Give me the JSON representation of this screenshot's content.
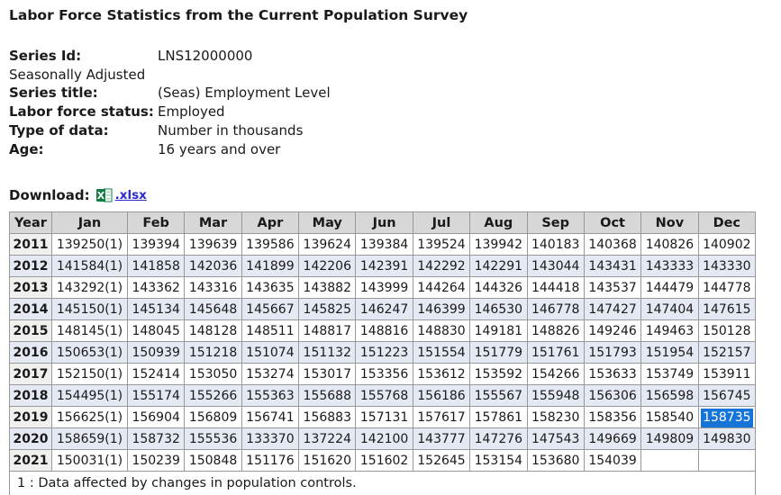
{
  "page_title": "Labor Force Statistics from the Current Population Survey",
  "meta": {
    "rows": [
      {
        "label": "Series Id:",
        "value": "LNS12000000"
      },
      {
        "label": "Seasonally Adjusted",
        "value": ""
      },
      {
        "label": "Series title:",
        "value": "(Seas) Employment Level"
      },
      {
        "label": "Labor force status:",
        "value": "Employed"
      },
      {
        "label": "Type of data:",
        "value": "Number in thousands"
      },
      {
        "label": "Age:",
        "value": "16 years and over"
      }
    ]
  },
  "download": {
    "label": "Download:",
    "link_text": ".xlsx",
    "icon": "excel-xlsx-icon"
  },
  "table": {
    "columns": [
      "Year",
      "Jan",
      "Feb",
      "Mar",
      "Apr",
      "May",
      "Jun",
      "Jul",
      "Aug",
      "Sep",
      "Oct",
      "Nov",
      "Dec"
    ],
    "rows": [
      {
        "year": "2011",
        "values": [
          "139250(1)",
          "139394",
          "139639",
          "139586",
          "139624",
          "139384",
          "139524",
          "139942",
          "140183",
          "140368",
          "140826",
          "140902"
        ]
      },
      {
        "year": "2012",
        "values": [
          "141584(1)",
          "141858",
          "142036",
          "141899",
          "142206",
          "142391",
          "142292",
          "142291",
          "143044",
          "143431",
          "143333",
          "143330"
        ]
      },
      {
        "year": "2013",
        "values": [
          "143292(1)",
          "143362",
          "143316",
          "143635",
          "143882",
          "143999",
          "144264",
          "144326",
          "144418",
          "143537",
          "144479",
          "144778"
        ]
      },
      {
        "year": "2014",
        "values": [
          "145150(1)",
          "145134",
          "145648",
          "145667",
          "145825",
          "146247",
          "146399",
          "146530",
          "146778",
          "147427",
          "147404",
          "147615"
        ]
      },
      {
        "year": "2015",
        "values": [
          "148145(1)",
          "148045",
          "148128",
          "148511",
          "148817",
          "148816",
          "148830",
          "149181",
          "148826",
          "149246",
          "149463",
          "150128"
        ]
      },
      {
        "year": "2016",
        "values": [
          "150653(1)",
          "150939",
          "151218",
          "151074",
          "151132",
          "151223",
          "151554",
          "151779",
          "151761",
          "151793",
          "151954",
          "152157"
        ]
      },
      {
        "year": "2017",
        "values": [
          "152150(1)",
          "152414",
          "153050",
          "153274",
          "153017",
          "153356",
          "153612",
          "153592",
          "154266",
          "153633",
          "153749",
          "153911"
        ]
      },
      {
        "year": "2018",
        "values": [
          "154495(1)",
          "155174",
          "155266",
          "155363",
          "155688",
          "155768",
          "156186",
          "155567",
          "155948",
          "156306",
          "156598",
          "156745"
        ]
      },
      {
        "year": "2019",
        "values": [
          "156625(1)",
          "156904",
          "156809",
          "156741",
          "156883",
          "157131",
          "157617",
          "157861",
          "158230",
          "158356",
          "158540",
          "158735"
        ]
      },
      {
        "year": "2020",
        "values": [
          "158659(1)",
          "158732",
          "155536",
          "133370",
          "137224",
          "142100",
          "143777",
          "147276",
          "147543",
          "149669",
          "149809",
          "149830"
        ]
      },
      {
        "year": "2021",
        "values": [
          "150031(1)",
          "150239",
          "150848",
          "151176",
          "151620",
          "151602",
          "152645",
          "153154",
          "153680",
          "154039",
          "",
          ""
        ]
      }
    ],
    "selected_cell": {
      "year": "2019",
      "month": "Dec"
    },
    "footnote": "1 : Data affected by changes in population controls."
  },
  "colors": {
    "header_bg": "#d7d7d7",
    "stripe_bg": "#e4e9f3",
    "year_cell_bg": "#f0f0ee",
    "table_border": "#999999",
    "selection_bg": "#1674d9",
    "selection_text": "#ffffff",
    "link": "#2a2ad4",
    "excel_green": "#107c41"
  }
}
